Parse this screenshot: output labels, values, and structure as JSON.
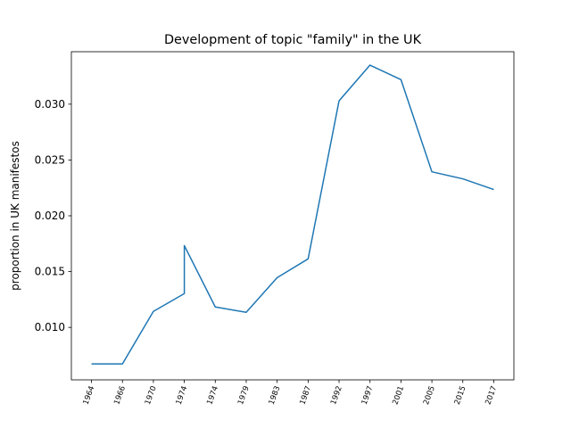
{
  "chart_data": {
    "type": "line",
    "title": "Development of topic \"family\" in the UK",
    "ylabel": "proportion in UK manifestos",
    "x": [
      0,
      1,
      2,
      3,
      3,
      4,
      5,
      6,
      7,
      8,
      9,
      10,
      11,
      12,
      13
    ],
    "series": [
      {
        "name": "family",
        "color": "#1f77b4",
        "values": [
          0.00673,
          0.00673,
          0.01143,
          0.01303,
          0.01733,
          0.01183,
          0.01135,
          0.01446,
          0.01614,
          0.0303,
          0.0335,
          0.0322,
          0.02394,
          0.02331,
          0.02235
        ]
      }
    ],
    "xlim": [
      -0.65,
      13.65
    ],
    "xticks": [
      {
        "value": 0,
        "label": "1964"
      },
      {
        "value": 1,
        "label": "1966"
      },
      {
        "value": 2,
        "label": "1970"
      },
      {
        "value": 3,
        "label": "1974"
      },
      {
        "value": 4,
        "label": "1974"
      },
      {
        "value": 5,
        "label": "1979"
      },
      {
        "value": 6,
        "label": "1983"
      },
      {
        "value": 7,
        "label": "1987"
      },
      {
        "value": 8,
        "label": "1992"
      },
      {
        "value": 9,
        "label": "1997"
      },
      {
        "value": 10,
        "label": "2001"
      },
      {
        "value": 11,
        "label": "2005"
      },
      {
        "value": 12,
        "label": "2015"
      },
      {
        "value": 13,
        "label": "2017"
      }
    ],
    "ylim": [
      0.0053,
      0.0347
    ],
    "yticks": [
      {
        "value": 0.01,
        "label": "0.010"
      },
      {
        "value": 0.015,
        "label": "0.015"
      },
      {
        "value": 0.02,
        "label": "0.020"
      },
      {
        "value": 0.025,
        "label": "0.025"
      },
      {
        "value": 0.03,
        "label": "0.030"
      }
    ],
    "grid": false
  }
}
